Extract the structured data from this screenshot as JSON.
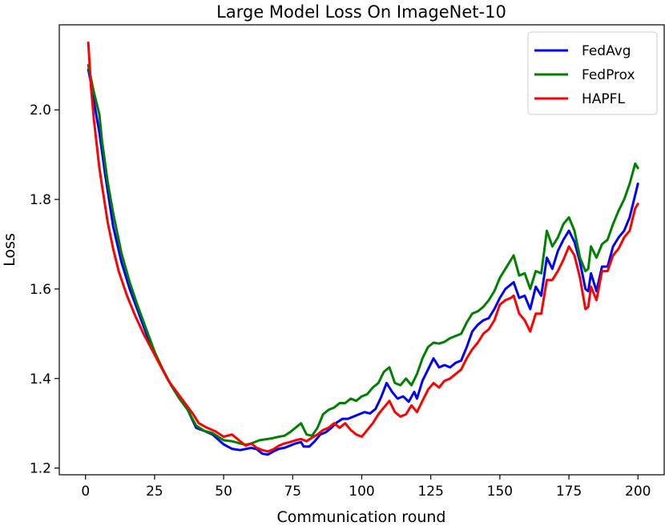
{
  "chart_data": {
    "type": "line",
    "title": "Large Model Loss On ImageNet-10",
    "xlabel": "Communication round",
    "ylabel": "Loss",
    "xlim": [
      -9.5,
      209.5
    ],
    "ylim": [
      1.185,
      2.19
    ],
    "xticks": [
      0,
      25,
      50,
      75,
      100,
      125,
      150,
      175,
      200
    ],
    "yticks": [
      1.2,
      1.4,
      1.6,
      1.8,
      2.0
    ],
    "ytick_labels": [
      "1.2",
      "1.4",
      "1.6",
      "1.8",
      "2.0"
    ],
    "grid": false,
    "legend": "top-right",
    "series": [
      {
        "name": "FedAvg",
        "color": "#0000ff",
        "points": [
          [
            1,
            2.09
          ],
          [
            2,
            2.06
          ],
          [
            3,
            2.02
          ],
          [
            5,
            1.95
          ],
          [
            7,
            1.86
          ],
          [
            10,
            1.74
          ],
          [
            13,
            1.66
          ],
          [
            16,
            1.6
          ],
          [
            19,
            1.55
          ],
          [
            22,
            1.5
          ],
          [
            25,
            1.455
          ],
          [
            28,
            1.42
          ],
          [
            31,
            1.385
          ],
          [
            34,
            1.355
          ],
          [
            37,
            1.33
          ],
          [
            40,
            1.29
          ],
          [
            43,
            1.283
          ],
          [
            46,
            1.275
          ],
          [
            50,
            1.253
          ],
          [
            53,
            1.243
          ],
          [
            56,
            1.24
          ],
          [
            60,
            1.245
          ],
          [
            62,
            1.242
          ],
          [
            64,
            1.232
          ],
          [
            66,
            1.23
          ],
          [
            68,
            1.237
          ],
          [
            70,
            1.243
          ],
          [
            72,
            1.245
          ],
          [
            74,
            1.25
          ],
          [
            76,
            1.255
          ],
          [
            78,
            1.258
          ],
          [
            79,
            1.248
          ],
          [
            81,
            1.248
          ],
          [
            83,
            1.26
          ],
          [
            85,
            1.275
          ],
          [
            87,
            1.28
          ],
          [
            89,
            1.29
          ],
          [
            91,
            1.302
          ],
          [
            93,
            1.31
          ],
          [
            95,
            1.31
          ],
          [
            97,
            1.315
          ],
          [
            99,
            1.32
          ],
          [
            101,
            1.325
          ],
          [
            103,
            1.322
          ],
          [
            105,
            1.332
          ],
          [
            107,
            1.358
          ],
          [
            109,
            1.39
          ],
          [
            111,
            1.37
          ],
          [
            113,
            1.355
          ],
          [
            115,
            1.36
          ],
          [
            117,
            1.348
          ],
          [
            119,
            1.37
          ],
          [
            120,
            1.355
          ],
          [
            122,
            1.395
          ],
          [
            124,
            1.42
          ],
          [
            126,
            1.445
          ],
          [
            128,
            1.425
          ],
          [
            130,
            1.43
          ],
          [
            132,
            1.425
          ],
          [
            134,
            1.435
          ],
          [
            136,
            1.44
          ],
          [
            138,
            1.47
          ],
          [
            140,
            1.505
          ],
          [
            142,
            1.52
          ],
          [
            144,
            1.53
          ],
          [
            146,
            1.535
          ],
          [
            148,
            1.555
          ],
          [
            150,
            1.58
          ],
          [
            152,
            1.6
          ],
          [
            154,
            1.61
          ],
          [
            155,
            1.615
          ],
          [
            157,
            1.58
          ],
          [
            159,
            1.585
          ],
          [
            161,
            1.555
          ],
          [
            163,
            1.605
          ],
          [
            165,
            1.585
          ],
          [
            167,
            1.67
          ],
          [
            169,
            1.645
          ],
          [
            171,
            1.685
          ],
          [
            173,
            1.71
          ],
          [
            175,
            1.73
          ],
          [
            177,
            1.705
          ],
          [
            179,
            1.66
          ],
          [
            181,
            1.6
          ],
          [
            182,
            1.595
          ],
          [
            183,
            1.635
          ],
          [
            185,
            1.595
          ],
          [
            187,
            1.65
          ],
          [
            189,
            1.65
          ],
          [
            191,
            1.695
          ],
          [
            193,
            1.715
          ],
          [
            195,
            1.73
          ],
          [
            197,
            1.76
          ],
          [
            199,
            1.81
          ],
          [
            200,
            1.835
          ]
        ]
      },
      {
        "name": "FedProx",
        "color": "#008000",
        "points": [
          [
            1,
            2.1
          ],
          [
            2,
            2.07
          ],
          [
            3,
            2.04
          ],
          [
            5,
            1.99
          ],
          [
            6,
            1.93
          ],
          [
            8,
            1.84
          ],
          [
            10,
            1.77
          ],
          [
            13,
            1.68
          ],
          [
            16,
            1.615
          ],
          [
            19,
            1.56
          ],
          [
            22,
            1.51
          ],
          [
            25,
            1.46
          ],
          [
            28,
            1.42
          ],
          [
            31,
            1.385
          ],
          [
            34,
            1.355
          ],
          [
            37,
            1.33
          ],
          [
            40,
            1.295
          ],
          [
            43,
            1.283
          ],
          [
            46,
            1.278
          ],
          [
            50,
            1.262
          ],
          [
            53,
            1.26
          ],
          [
            56,
            1.255
          ],
          [
            58,
            1.252
          ],
          [
            60,
            1.255
          ],
          [
            63,
            1.262
          ],
          [
            66,
            1.265
          ],
          [
            68,
            1.267
          ],
          [
            70,
            1.27
          ],
          [
            72,
            1.272
          ],
          [
            74,
            1.28
          ],
          [
            76,
            1.29
          ],
          [
            78,
            1.3
          ],
          [
            80,
            1.275
          ],
          [
            82,
            1.272
          ],
          [
            84,
            1.29
          ],
          [
            86,
            1.32
          ],
          [
            88,
            1.33
          ],
          [
            90,
            1.335
          ],
          [
            92,
            1.345
          ],
          [
            94,
            1.345
          ],
          [
            96,
            1.355
          ],
          [
            98,
            1.35
          ],
          [
            100,
            1.36
          ],
          [
            102,
            1.365
          ],
          [
            104,
            1.38
          ],
          [
            106,
            1.39
          ],
          [
            108,
            1.415
          ],
          [
            110,
            1.425
          ],
          [
            112,
            1.39
          ],
          [
            114,
            1.385
          ],
          [
            116,
            1.4
          ],
          [
            118,
            1.385
          ],
          [
            120,
            1.41
          ],
          [
            122,
            1.445
          ],
          [
            124,
            1.47
          ],
          [
            126,
            1.48
          ],
          [
            128,
            1.478
          ],
          [
            130,
            1.482
          ],
          [
            132,
            1.49
          ],
          [
            134,
            1.495
          ],
          [
            136,
            1.5
          ],
          [
            138,
            1.525
          ],
          [
            140,
            1.545
          ],
          [
            142,
            1.55
          ],
          [
            144,
            1.56
          ],
          [
            146,
            1.575
          ],
          [
            148,
            1.595
          ],
          [
            150,
            1.625
          ],
          [
            152,
            1.645
          ],
          [
            154,
            1.665
          ],
          [
            155,
            1.675
          ],
          [
            157,
            1.63
          ],
          [
            159,
            1.635
          ],
          [
            161,
            1.6
          ],
          [
            163,
            1.64
          ],
          [
            165,
            1.635
          ],
          [
            167,
            1.73
          ],
          [
            169,
            1.695
          ],
          [
            171,
            1.715
          ],
          [
            173,
            1.745
          ],
          [
            175,
            1.76
          ],
          [
            177,
            1.73
          ],
          [
            179,
            1.67
          ],
          [
            181,
            1.64
          ],
          [
            182,
            1.645
          ],
          [
            183,
            1.695
          ],
          [
            185,
            1.67
          ],
          [
            187,
            1.7
          ],
          [
            189,
            1.71
          ],
          [
            191,
            1.745
          ],
          [
            193,
            1.775
          ],
          [
            195,
            1.8
          ],
          [
            197,
            1.835
          ],
          [
            199,
            1.88
          ],
          [
            200,
            1.87
          ]
        ]
      },
      {
        "name": "HAPFL",
        "color": "#ff0000",
        "points": [
          [
            1,
            2.15
          ],
          [
            2,
            2.05
          ],
          [
            3,
            1.98
          ],
          [
            5,
            1.87
          ],
          [
            6,
            1.83
          ],
          [
            8,
            1.75
          ],
          [
            10,
            1.69
          ],
          [
            12,
            1.64
          ],
          [
            15,
            1.585
          ],
          [
            18,
            1.54
          ],
          [
            21,
            1.5
          ],
          [
            24,
            1.465
          ],
          [
            27,
            1.43
          ],
          [
            30,
            1.395
          ],
          [
            33,
            1.37
          ],
          [
            36,
            1.345
          ],
          [
            39,
            1.32
          ],
          [
            41,
            1.3
          ],
          [
            44,
            1.29
          ],
          [
            47,
            1.282
          ],
          [
            50,
            1.27
          ],
          [
            53,
            1.275
          ],
          [
            56,
            1.26
          ],
          [
            58,
            1.25
          ],
          [
            60,
            1.255
          ],
          [
            62,
            1.245
          ],
          [
            64,
            1.24
          ],
          [
            66,
            1.237
          ],
          [
            68,
            1.242
          ],
          [
            70,
            1.25
          ],
          [
            72,
            1.255
          ],
          [
            74,
            1.258
          ],
          [
            76,
            1.262
          ],
          [
            78,
            1.265
          ],
          [
            80,
            1.26
          ],
          [
            82,
            1.268
          ],
          [
            84,
            1.275
          ],
          [
            86,
            1.285
          ],
          [
            88,
            1.29
          ],
          [
            90,
            1.3
          ],
          [
            92,
            1.29
          ],
          [
            94,
            1.3
          ],
          [
            96,
            1.285
          ],
          [
            98,
            1.275
          ],
          [
            100,
            1.27
          ],
          [
            102,
            1.285
          ],
          [
            104,
            1.3
          ],
          [
            106,
            1.32
          ],
          [
            108,
            1.335
          ],
          [
            110,
            1.35
          ],
          [
            112,
            1.325
          ],
          [
            114,
            1.315
          ],
          [
            116,
            1.32
          ],
          [
            118,
            1.34
          ],
          [
            120,
            1.325
          ],
          [
            122,
            1.35
          ],
          [
            124,
            1.375
          ],
          [
            126,
            1.39
          ],
          [
            128,
            1.38
          ],
          [
            130,
            1.395
          ],
          [
            132,
            1.4
          ],
          [
            134,
            1.41
          ],
          [
            136,
            1.42
          ],
          [
            138,
            1.445
          ],
          [
            140,
            1.465
          ],
          [
            142,
            1.48
          ],
          [
            144,
            1.5
          ],
          [
            146,
            1.51
          ],
          [
            148,
            1.53
          ],
          [
            150,
            1.565
          ],
          [
            152,
            1.575
          ],
          [
            154,
            1.58
          ],
          [
            155,
            1.585
          ],
          [
            157,
            1.545
          ],
          [
            159,
            1.53
          ],
          [
            161,
            1.505
          ],
          [
            163,
            1.545
          ],
          [
            165,
            1.545
          ],
          [
            167,
            1.62
          ],
          [
            169,
            1.62
          ],
          [
            171,
            1.64
          ],
          [
            173,
            1.665
          ],
          [
            175,
            1.695
          ],
          [
            177,
            1.675
          ],
          [
            179,
            1.625
          ],
          [
            181,
            1.555
          ],
          [
            182,
            1.56
          ],
          [
            183,
            1.605
          ],
          [
            185,
            1.575
          ],
          [
            187,
            1.64
          ],
          [
            189,
            1.64
          ],
          [
            191,
            1.675
          ],
          [
            193,
            1.69
          ],
          [
            195,
            1.715
          ],
          [
            197,
            1.73
          ],
          [
            199,
            1.78
          ],
          [
            200,
            1.79
          ]
        ]
      }
    ]
  }
}
